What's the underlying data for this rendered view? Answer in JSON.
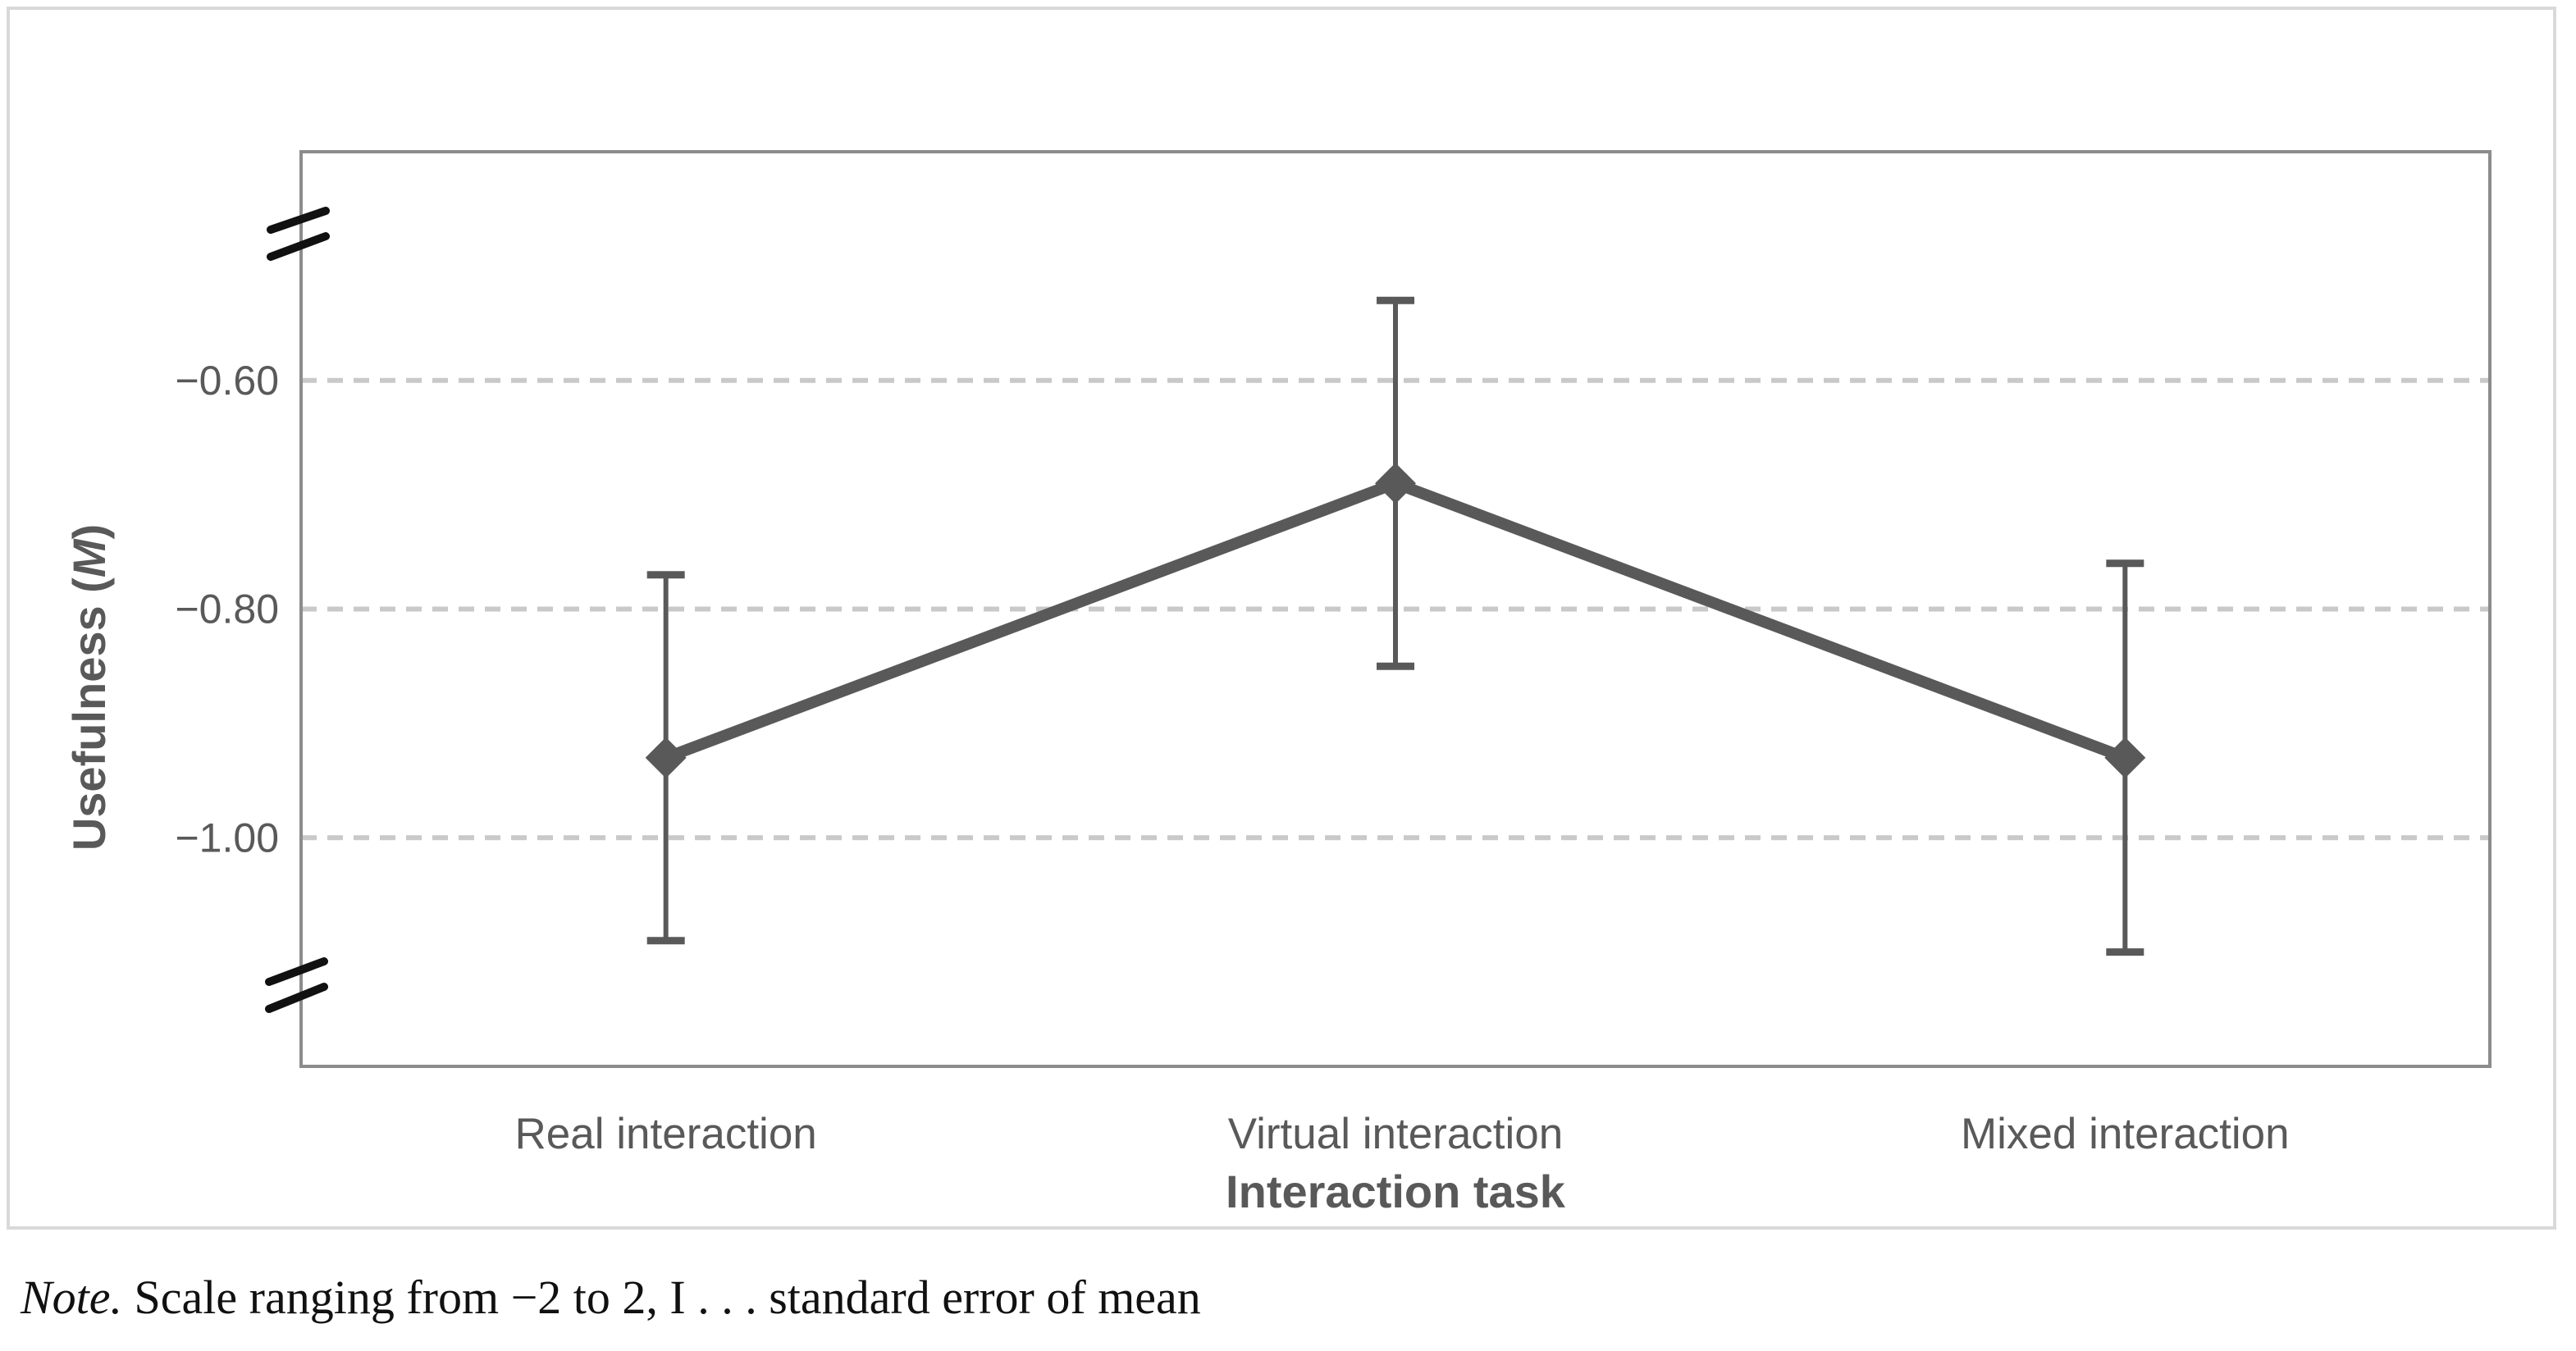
{
  "chart_data": {
    "type": "line",
    "title": "",
    "categories": [
      "Real interaction",
      "Virtual interaction",
      "Mixed interaction"
    ],
    "series": [
      {
        "name": "Usefulness mean",
        "values": [
          -0.93,
          -0.69,
          -0.93
        ],
        "error_upper": [
          -0.77,
          -0.53,
          -0.76
        ],
        "error_lower": [
          -1.09,
          -0.85,
          -1.1
        ]
      }
    ],
    "xlabel": "Interaction task",
    "ylabel": "Usefulness (M)",
    "ylabel_parts": {
      "prefix": "Usefulness (",
      "italic": "M",
      "suffix": ")"
    },
    "y_ticks": [
      -0.6,
      -0.8,
      -1.0
    ],
    "y_tick_labels": [
      "−0.60",
      "−0.80",
      "−1.00"
    ],
    "ylim_displayed": [
      -1.2,
      -0.4
    ],
    "full_scale": [
      -2,
      2
    ],
    "axis_breaks": true,
    "grid": "dashed-horizontal",
    "legend": "none",
    "marker": "diamond",
    "colors": {
      "series": "#595959",
      "grid": "#c9c9c9",
      "plot_border": "#8c8c8c",
      "figure_border": "#d9d9d9",
      "label_text": "#595959",
      "break_marks": "#111111",
      "note_text": "#111111",
      "background": "#ffffff"
    }
  },
  "note": {
    "prefix": "Note.",
    "text": " Scale ranging from −2 to 2, I . . . standard error of mean"
  }
}
